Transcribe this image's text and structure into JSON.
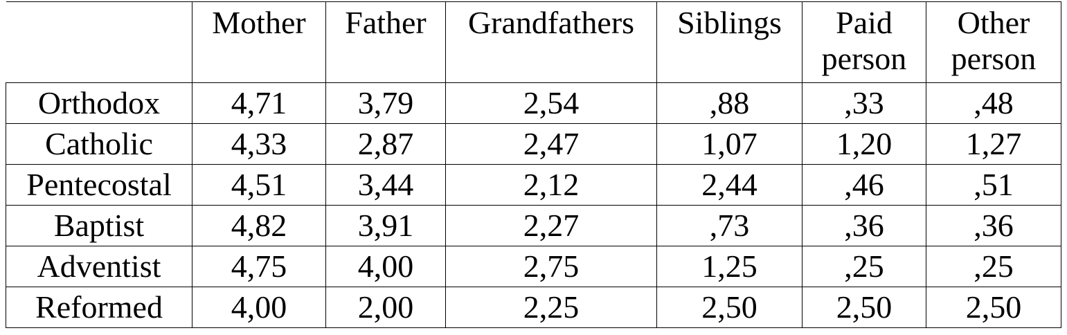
{
  "table": {
    "header": [
      "",
      "Mother",
      "Father",
      "Grandfathers",
      "Siblings",
      "Paid person",
      "Other person"
    ],
    "rows": [
      [
        "Orthodox",
        "4,71",
        "3,79",
        "2,54",
        ",88",
        ",33",
        ",48"
      ],
      [
        "Catholic",
        "4,33",
        "2,87",
        "2,47",
        "1,07",
        "1,20",
        "1,27"
      ],
      [
        "Pentecostal",
        "4,51",
        "3,44",
        "2,12",
        "2,44",
        ",46",
        ",51"
      ],
      [
        "Baptist",
        "4,82",
        "3,91",
        "2,27",
        ",73",
        ",36",
        ",36"
      ],
      [
        "Adventist",
        "4,75",
        "4,00",
        "2,75",
        "1,25",
        ",25",
        ",25"
      ],
      [
        "Reformed",
        "4,00",
        "2,00",
        "2,25",
        "2,50",
        "2,50",
        "2,50"
      ]
    ]
  }
}
